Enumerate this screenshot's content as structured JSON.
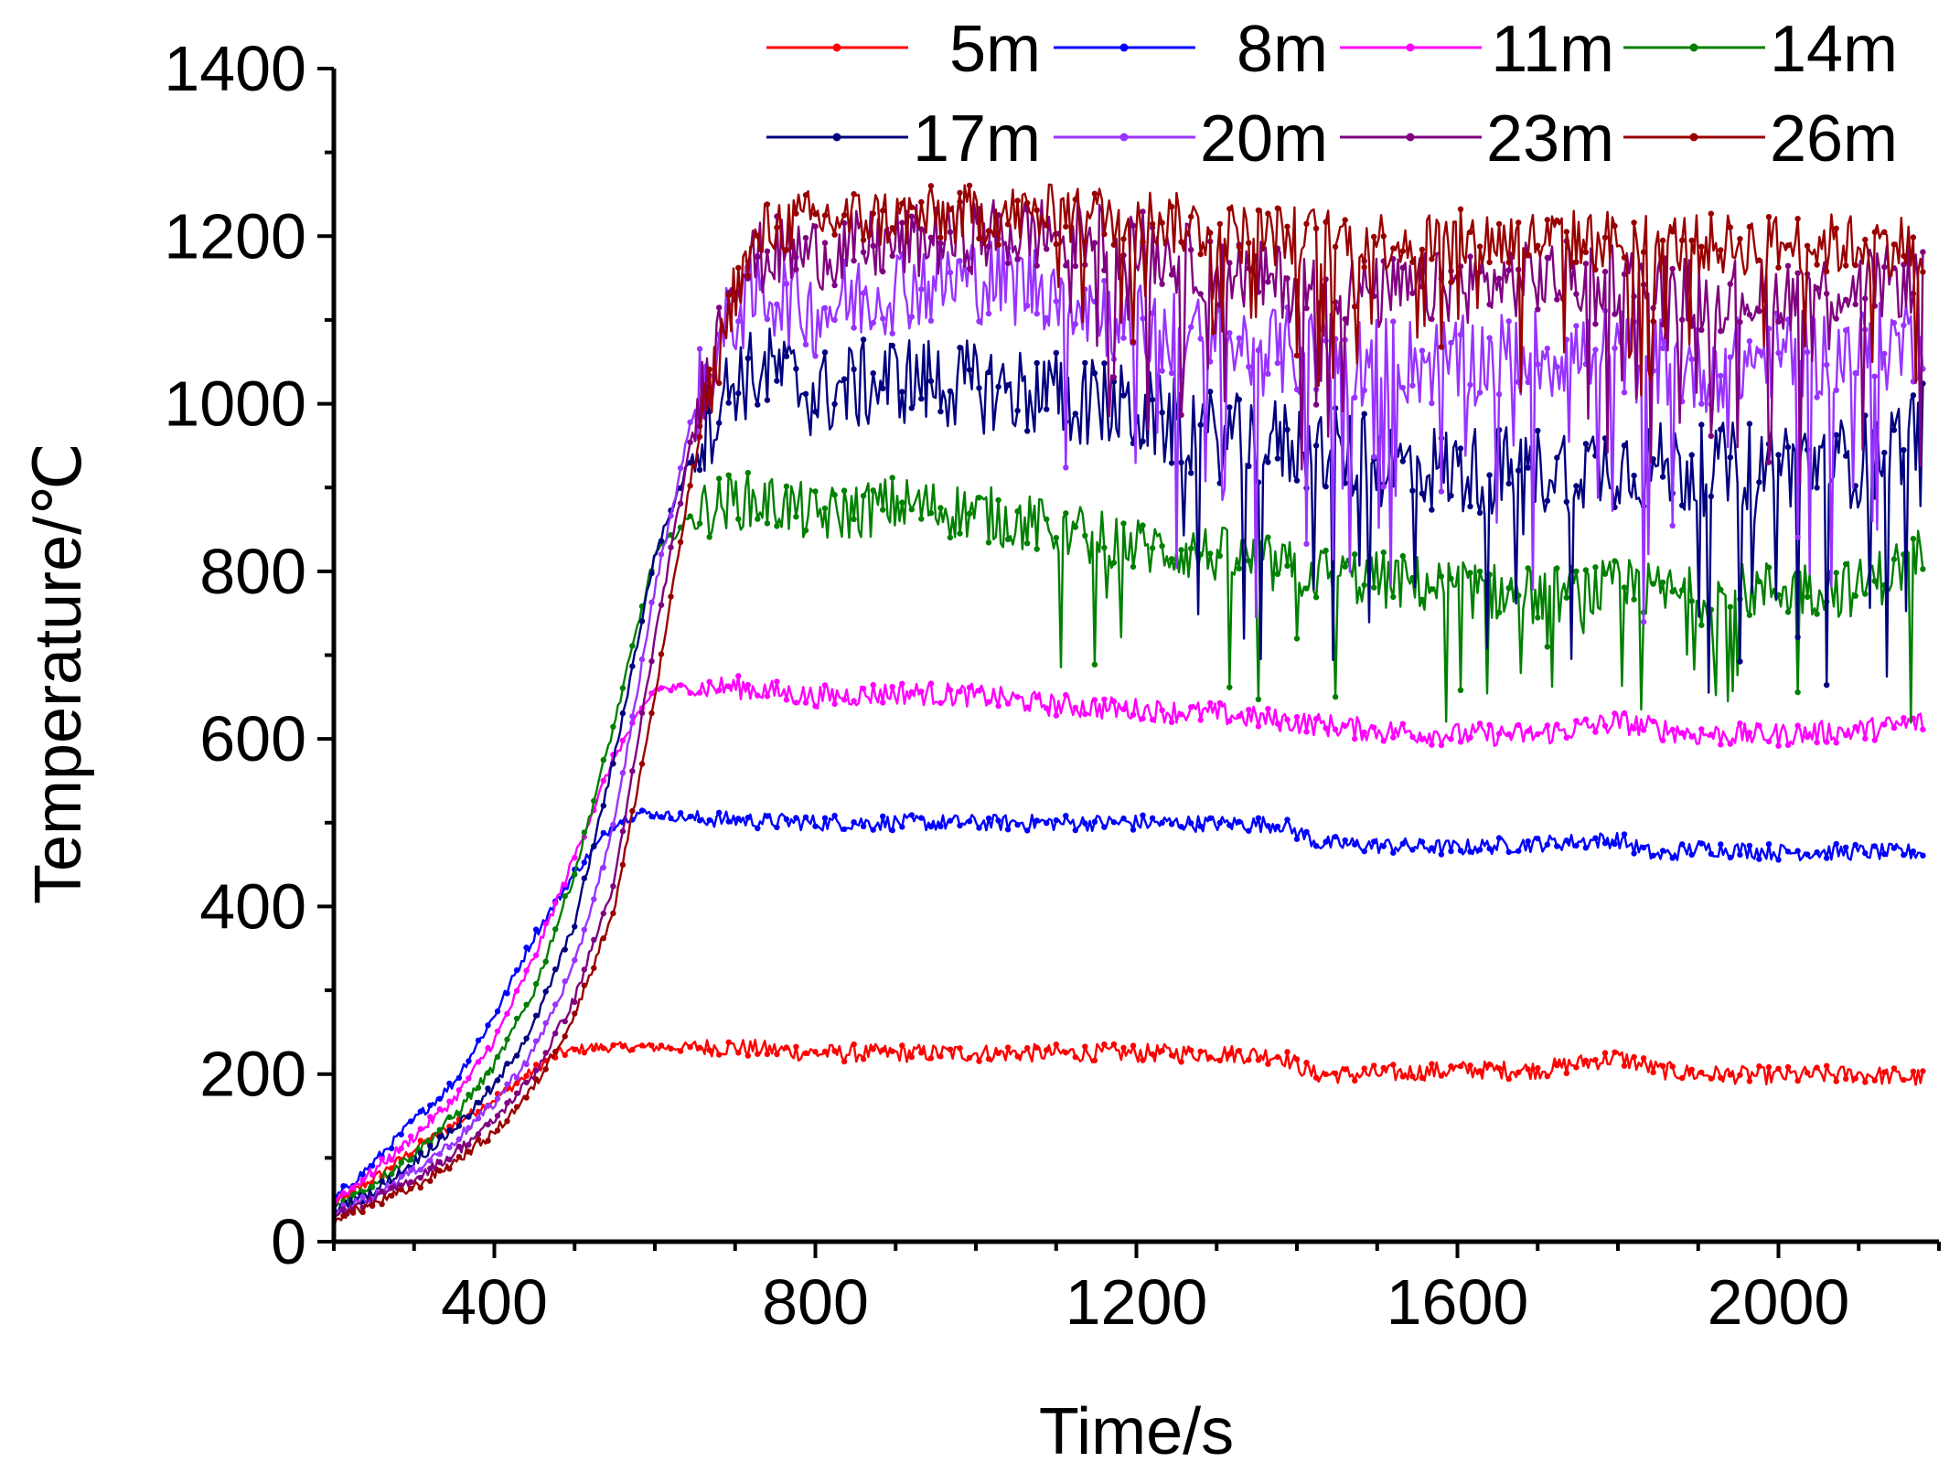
{
  "chart_data": {
    "type": "line",
    "title": "",
    "xlabel": "Time/s",
    "ylabel": "Temperature/℃",
    "ylabel_prefix": "Temperature/",
    "ylabel_unit": "℃",
    "xlim": [
      200,
      2200
    ],
    "ylim": [
      0,
      1400
    ],
    "xticks": [
      400,
      800,
      1200,
      1600,
      2000
    ],
    "xtick_labels": [
      "400",
      "800",
      "1200",
      "1600",
      "2000"
    ],
    "yticks": [
      0,
      200,
      400,
      600,
      800,
      1000,
      1200,
      1400
    ],
    "ytick_labels": [
      "0",
      "200",
      "400",
      "600",
      "800",
      "1000",
      "1200",
      "1400"
    ],
    "grid": false,
    "legend_position": "top-right",
    "series": [
      {
        "name": "5m",
        "color": "#ff0000",
        "marker": "circle",
        "points": [
          [
            200,
            45
          ],
          [
            250,
            75
          ],
          [
            300,
            110
          ],
          [
            350,
            140
          ],
          [
            400,
            170
          ],
          [
            450,
            205
          ],
          [
            480,
            225
          ],
          [
            520,
            232
          ],
          [
            600,
            232
          ],
          [
            700,
            232
          ],
          [
            800,
            225
          ],
          [
            900,
            225
          ],
          [
            1000,
            225
          ],
          [
            1100,
            225
          ],
          [
            1200,
            225
          ],
          [
            1300,
            225
          ],
          [
            1380,
            222
          ],
          [
            1420,
            200
          ],
          [
            1500,
            200
          ],
          [
            1600,
            205
          ],
          [
            1700,
            205
          ],
          [
            1800,
            220
          ],
          [
            1850,
            205
          ],
          [
            1900,
            200
          ],
          [
            2000,
            198
          ],
          [
            2100,
            200
          ],
          [
            2180,
            195
          ]
        ],
        "noise": 22
      },
      {
        "name": "8m",
        "color": "#0000ff",
        "marker": "triangle-up",
        "points": [
          [
            200,
            50
          ],
          [
            250,
            95
          ],
          [
            300,
            145
          ],
          [
            350,
            190
          ],
          [
            400,
            270
          ],
          [
            450,
            365
          ],
          [
            500,
            440
          ],
          [
            550,
            500
          ],
          [
            580,
            512
          ],
          [
            650,
            505
          ],
          [
            800,
            500
          ],
          [
            1000,
            500
          ],
          [
            1200,
            500
          ],
          [
            1380,
            498
          ],
          [
            1430,
            475
          ],
          [
            1600,
            470
          ],
          [
            1800,
            480
          ],
          [
            1850,
            460
          ],
          [
            1900,
            470
          ],
          [
            2000,
            465
          ],
          [
            2100,
            465
          ],
          [
            2180,
            465
          ]
        ],
        "noise": 20
      },
      {
        "name": "11m",
        "color": "#ff00ff",
        "marker": "triangle-down",
        "points": [
          [
            200,
            48
          ],
          [
            250,
            85
          ],
          [
            300,
            125
          ],
          [
            350,
            170
          ],
          [
            400,
            240
          ],
          [
            450,
            340
          ],
          [
            500,
            460
          ],
          [
            550,
            580
          ],
          [
            600,
            660
          ],
          [
            700,
            662
          ],
          [
            800,
            650
          ],
          [
            900,
            655
          ],
          [
            1000,
            652
          ],
          [
            1100,
            640
          ],
          [
            1200,
            635
          ],
          [
            1300,
            630
          ],
          [
            1400,
            620
          ],
          [
            1500,
            610
          ],
          [
            1600,
            605
          ],
          [
            1700,
            605
          ],
          [
            1800,
            620
          ],
          [
            1900,
            605
          ],
          [
            2000,
            605
          ],
          [
            2100,
            610
          ],
          [
            2180,
            620
          ]
        ],
        "noise": 28
      },
      {
        "name": "14m",
        "color": "#008000",
        "marker": "diamond",
        "points": [
          [
            200,
            40
          ],
          [
            250,
            70
          ],
          [
            300,
            105
          ],
          [
            350,
            150
          ],
          [
            400,
            210
          ],
          [
            450,
            300
          ],
          [
            500,
            440
          ],
          [
            550,
            620
          ],
          [
            600,
            820
          ],
          [
            650,
            870
          ],
          [
            700,
            885
          ],
          [
            760,
            880
          ],
          [
            800,
            865
          ],
          [
            900,
            880
          ],
          [
            1000,
            870
          ],
          [
            1100,
            850
          ],
          [
            1200,
            830
          ],
          [
            1300,
            820
          ],
          [
            1400,
            800
          ],
          [
            1500,
            790
          ],
          [
            1600,
            780
          ],
          [
            1700,
            770
          ],
          [
            1800,
            780
          ],
          [
            1900,
            770
          ],
          [
            2000,
            780
          ],
          [
            2100,
            780
          ],
          [
            2180,
            820
          ]
        ],
        "noise": 70
      },
      {
        "name": "17m",
        "color": "#000080",
        "marker": "triangle-left",
        "points": [
          [
            200,
            38
          ],
          [
            250,
            60
          ],
          [
            300,
            95
          ],
          [
            350,
            135
          ],
          [
            400,
            185
          ],
          [
            450,
            260
          ],
          [
            500,
            380
          ],
          [
            550,
            580
          ],
          [
            600,
            820
          ],
          [
            650,
            950
          ],
          [
            700,
            1030
          ],
          [
            750,
            1040
          ],
          [
            800,
            1010
          ],
          [
            900,
            1030
          ],
          [
            1000,
            1020
          ],
          [
            1100,
            1010
          ],
          [
            1200,
            990
          ],
          [
            1300,
            960
          ],
          [
            1400,
            950
          ],
          [
            1500,
            930
          ],
          [
            1600,
            920
          ],
          [
            1700,
            920
          ],
          [
            1800,
            930
          ],
          [
            1900,
            920
          ],
          [
            2000,
            930
          ],
          [
            2100,
            930
          ],
          [
            2180,
            970
          ]
        ],
        "noise": 110
      },
      {
        "name": "20m",
        "color": "#9933ff",
        "marker": "triangle-right",
        "points": [
          [
            200,
            35
          ],
          [
            250,
            55
          ],
          [
            300,
            85
          ],
          [
            350,
            120
          ],
          [
            400,
            165
          ],
          [
            450,
            230
          ],
          [
            500,
            330
          ],
          [
            550,
            500
          ],
          [
            600,
            780
          ],
          [
            650,
            1000
          ],
          [
            700,
            1110
          ],
          [
            740,
            1135
          ],
          [
            800,
            1110
          ],
          [
            900,
            1140
          ],
          [
            1000,
            1150
          ],
          [
            1100,
            1140
          ],
          [
            1200,
            1090
          ],
          [
            1300,
            1070
          ],
          [
            1400,
            1060
          ],
          [
            1500,
            1050
          ],
          [
            1600,
            1050
          ],
          [
            1700,
            1060
          ],
          [
            1800,
            1060
          ],
          [
            1900,
            1040
          ],
          [
            2000,
            1060
          ],
          [
            2100,
            1060
          ],
          [
            2180,
            1080
          ]
        ],
        "noise": 110
      },
      {
        "name": "23m",
        "color": "#800080",
        "marker": "hexagon",
        "points": [
          [
            200,
            30
          ],
          [
            250,
            50
          ],
          [
            300,
            75
          ],
          [
            350,
            105
          ],
          [
            400,
            145
          ],
          [
            450,
            200
          ],
          [
            500,
            290
          ],
          [
            550,
            430
          ],
          [
            600,
            720
          ],
          [
            650,
            980
          ],
          [
            700,
            1160
          ],
          [
            750,
            1180
          ],
          [
            800,
            1180
          ],
          [
            900,
            1190
          ],
          [
            1000,
            1200
          ],
          [
            1100,
            1205
          ],
          [
            1200,
            1190
          ],
          [
            1300,
            1160
          ],
          [
            1400,
            1140
          ],
          [
            1500,
            1130
          ],
          [
            1600,
            1140
          ],
          [
            1700,
            1150
          ],
          [
            1800,
            1150
          ],
          [
            1900,
            1130
          ],
          [
            2000,
            1130
          ],
          [
            2100,
            1140
          ],
          [
            2180,
            1150
          ]
        ],
        "noise": 90
      },
      {
        "name": "26m",
        "color": "#990000",
        "marker": "star",
        "points": [
          [
            200,
            28
          ],
          [
            250,
            45
          ],
          [
            300,
            65
          ],
          [
            350,
            95
          ],
          [
            400,
            130
          ],
          [
            450,
            185
          ],
          [
            500,
            270
          ],
          [
            550,
            400
          ],
          [
            600,
            650
          ],
          [
            650,
            940
          ],
          [
            700,
            1140
          ],
          [
            740,
            1210
          ],
          [
            800,
            1220
          ],
          [
            900,
            1222
          ],
          [
            1000,
            1225
          ],
          [
            1100,
            1225
          ],
          [
            1200,
            1225
          ],
          [
            1300,
            1205
          ],
          [
            1400,
            1200
          ],
          [
            1500,
            1195
          ],
          [
            1600,
            1195
          ],
          [
            1700,
            1195
          ],
          [
            1800,
            1195
          ],
          [
            1900,
            1190
          ],
          [
            2000,
            1190
          ],
          [
            2100,
            1190
          ],
          [
            2180,
            1190
          ]
        ],
        "noise": 75
      }
    ]
  }
}
